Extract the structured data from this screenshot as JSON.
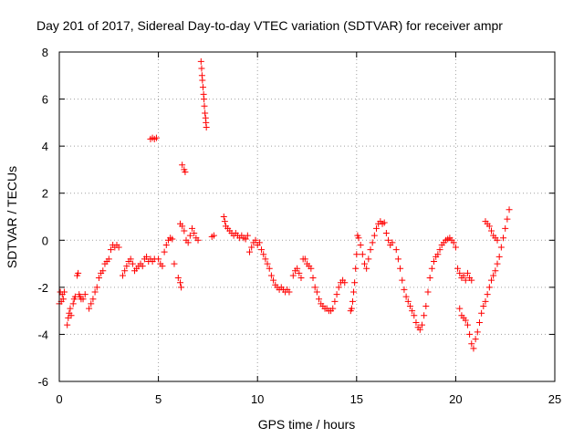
{
  "chart_data": {
    "type": "scatter",
    "title": "Day 201 of 2017, Sidereal Day-to-day VTEC variation (SDTVAR) for receiver ampr",
    "xlabel": "GPS time / hours",
    "ylabel": "SDTVAR / TECUs",
    "xlim": [
      0,
      25
    ],
    "ylim": [
      -6,
      8
    ],
    "xticks": [
      "0",
      "5",
      "10",
      "15",
      "20",
      "25"
    ],
    "yticks": [
      "-6",
      "-4",
      "-2",
      "0",
      "2",
      "4",
      "6",
      "8"
    ],
    "grid": true,
    "marker": "plus",
    "color": "#ff0000",
    "series": [
      {
        "name": "SDTVAR",
        "points": [
          [
            0.0,
            -2.7
          ],
          [
            0.05,
            -2.2
          ],
          [
            0.1,
            -2.6
          ],
          [
            0.15,
            -2.3
          ],
          [
            0.2,
            -2.5
          ],
          [
            0.25,
            -2.2
          ],
          [
            0.4,
            -3.6
          ],
          [
            0.45,
            -3.3
          ],
          [
            0.5,
            -3.1
          ],
          [
            0.55,
            -2.9
          ],
          [
            0.6,
            -3.2
          ],
          [
            0.7,
            -2.7
          ],
          [
            0.75,
            -2.5
          ],
          [
            0.8,
            -2.4
          ],
          [
            0.9,
            -1.5
          ],
          [
            0.95,
            -1.4
          ],
          [
            1.0,
            -2.3
          ],
          [
            1.05,
            -2.4
          ],
          [
            1.1,
            -2.5
          ],
          [
            1.2,
            -2.5
          ],
          [
            1.3,
            -2.3
          ],
          [
            1.5,
            -2.9
          ],
          [
            1.6,
            -2.7
          ],
          [
            1.7,
            -2.5
          ],
          [
            1.8,
            -2.2
          ],
          [
            1.9,
            -2.0
          ],
          [
            2.0,
            -1.6
          ],
          [
            2.1,
            -1.4
          ],
          [
            2.2,
            -1.3
          ],
          [
            2.3,
            -1.0
          ],
          [
            2.4,
            -0.9
          ],
          [
            2.5,
            -0.8
          ],
          [
            2.6,
            -0.4
          ],
          [
            2.7,
            -0.2
          ],
          [
            2.8,
            -0.3
          ],
          [
            2.9,
            -0.2
          ],
          [
            3.0,
            -0.3
          ],
          [
            3.2,
            -1.5
          ],
          [
            3.3,
            -1.3
          ],
          [
            3.4,
            -1.1
          ],
          [
            3.5,
            -0.9
          ],
          [
            3.6,
            -0.8
          ],
          [
            3.7,
            -1.0
          ],
          [
            3.8,
            -1.3
          ],
          [
            3.9,
            -1.2
          ],
          [
            4.0,
            -1.1
          ],
          [
            4.1,
            -1.0
          ],
          [
            4.2,
            -1.1
          ],
          [
            4.3,
            -0.8
          ],
          [
            4.4,
            -0.7
          ],
          [
            4.5,
            -0.9
          ],
          [
            4.6,
            -0.8
          ],
          [
            4.7,
            -0.9
          ],
          [
            4.8,
            -0.8
          ],
          [
            4.6,
            4.3
          ],
          [
            4.7,
            4.35
          ],
          [
            4.8,
            4.3
          ],
          [
            4.9,
            4.35
          ],
          [
            5.0,
            -0.8
          ],
          [
            5.1,
            -1.0
          ],
          [
            5.2,
            -1.1
          ],
          [
            5.3,
            -0.5
          ],
          [
            5.4,
            -0.2
          ],
          [
            5.5,
            0.0
          ],
          [
            5.6,
            0.1
          ],
          [
            5.7,
            0.05
          ],
          [
            5.8,
            -1.0
          ],
          [
            6.0,
            -1.6
          ],
          [
            6.1,
            -1.8
          ],
          [
            6.15,
            -2.0
          ],
          [
            6.2,
            3.2
          ],
          [
            6.3,
            3.0
          ],
          [
            6.35,
            2.9
          ],
          [
            6.1,
            0.7
          ],
          [
            6.2,
            0.6
          ],
          [
            6.3,
            0.4
          ],
          [
            6.4,
            0.0
          ],
          [
            6.5,
            -0.1
          ],
          [
            6.6,
            0.2
          ],
          [
            6.7,
            0.5
          ],
          [
            6.8,
            0.3
          ],
          [
            6.9,
            0.1
          ],
          [
            7.0,
            0.0
          ],
          [
            7.15,
            7.6
          ],
          [
            7.18,
            7.3
          ],
          [
            7.2,
            7.0
          ],
          [
            7.22,
            6.8
          ],
          [
            7.25,
            6.5
          ],
          [
            7.28,
            6.2
          ],
          [
            7.3,
            6.0
          ],
          [
            7.32,
            5.7
          ],
          [
            7.35,
            5.4
          ],
          [
            7.38,
            5.2
          ],
          [
            7.4,
            5.0
          ],
          [
            7.42,
            4.8
          ],
          [
            7.7,
            0.15
          ],
          [
            7.8,
            0.2
          ],
          [
            8.3,
            1.0
          ],
          [
            8.35,
            0.8
          ],
          [
            8.4,
            0.6
          ],
          [
            8.5,
            0.5
          ],
          [
            8.6,
            0.4
          ],
          [
            8.7,
            0.3
          ],
          [
            8.8,
            0.2
          ],
          [
            8.9,
            0.3
          ],
          [
            9.0,
            0.2
          ],
          [
            9.1,
            0.1
          ],
          [
            9.2,
            0.2
          ],
          [
            9.3,
            0.1
          ],
          [
            9.4,
            0.05
          ],
          [
            9.5,
            0.2
          ],
          [
            9.6,
            -0.5
          ],
          [
            9.7,
            -0.3
          ],
          [
            9.8,
            -0.1
          ],
          [
            9.9,
            0.0
          ],
          [
            10.0,
            -0.2
          ],
          [
            10.1,
            -0.1
          ],
          [
            10.2,
            -0.4
          ],
          [
            10.3,
            -0.6
          ],
          [
            10.4,
            -0.8
          ],
          [
            10.5,
            -1.0
          ],
          [
            10.6,
            -1.2
          ],
          [
            10.7,
            -1.5
          ],
          [
            10.8,
            -1.7
          ],
          [
            10.9,
            -1.9
          ],
          [
            11.0,
            -2.0
          ],
          [
            11.1,
            -2.1
          ],
          [
            11.2,
            -2.0
          ],
          [
            11.3,
            -2.1
          ],
          [
            11.4,
            -2.2
          ],
          [
            11.5,
            -2.1
          ],
          [
            11.6,
            -2.2
          ],
          [
            11.8,
            -1.5
          ],
          [
            11.9,
            -1.3
          ],
          [
            12.0,
            -1.2
          ],
          [
            12.1,
            -1.4
          ],
          [
            12.2,
            -1.6
          ],
          [
            12.3,
            -0.8
          ],
          [
            12.4,
            -0.8
          ],
          [
            12.5,
            -1.0
          ],
          [
            12.6,
            -1.1
          ],
          [
            12.7,
            -1.2
          ],
          [
            12.8,
            -1.6
          ],
          [
            12.9,
            -2.0
          ],
          [
            13.0,
            -2.2
          ],
          [
            13.1,
            -2.5
          ],
          [
            13.2,
            -2.7
          ],
          [
            13.3,
            -2.8
          ],
          [
            13.4,
            -2.9
          ],
          [
            13.5,
            -2.9
          ],
          [
            13.6,
            -3.0
          ],
          [
            13.7,
            -3.0
          ],
          [
            13.8,
            -2.9
          ],
          [
            13.9,
            -2.6
          ],
          [
            14.0,
            -2.3
          ],
          [
            14.1,
            -2.0
          ],
          [
            14.2,
            -1.8
          ],
          [
            14.3,
            -1.7
          ],
          [
            14.4,
            -1.8
          ],
          [
            14.7,
            -3.0
          ],
          [
            14.75,
            -2.9
          ],
          [
            14.8,
            -2.6
          ],
          [
            14.85,
            -2.2
          ],
          [
            14.9,
            -1.8
          ],
          [
            14.95,
            -1.2
          ],
          [
            15.0,
            -0.6
          ],
          [
            15.05,
            0.2
          ],
          [
            15.1,
            0.1
          ],
          [
            15.2,
            -0.2
          ],
          [
            15.3,
            -0.6
          ],
          [
            15.4,
            -1.0
          ],
          [
            15.5,
            -1.2
          ],
          [
            15.6,
            -0.8
          ],
          [
            15.7,
            -0.4
          ],
          [
            15.8,
            -0.1
          ],
          [
            15.9,
            0.2
          ],
          [
            16.0,
            0.5
          ],
          [
            16.1,
            0.7
          ],
          [
            16.2,
            0.8
          ],
          [
            16.3,
            0.7
          ],
          [
            16.4,
            0.75
          ],
          [
            16.5,
            0.3
          ],
          [
            16.6,
            0.0
          ],
          [
            16.7,
            -0.2
          ],
          [
            16.8,
            -0.1
          ],
          [
            17.0,
            -0.4
          ],
          [
            17.1,
            -0.8
          ],
          [
            17.2,
            -1.2
          ],
          [
            17.3,
            -1.7
          ],
          [
            17.4,
            -2.1
          ],
          [
            17.5,
            -2.4
          ],
          [
            17.6,
            -2.6
          ],
          [
            17.7,
            -2.8
          ],
          [
            17.8,
            -3.0
          ],
          [
            17.9,
            -3.2
          ],
          [
            18.0,
            -3.5
          ],
          [
            18.1,
            -3.7
          ],
          [
            18.2,
            -3.8
          ],
          [
            18.3,
            -3.6
          ],
          [
            18.4,
            -3.2
          ],
          [
            18.5,
            -2.8
          ],
          [
            18.6,
            -2.2
          ],
          [
            18.7,
            -1.6
          ],
          [
            18.8,
            -1.2
          ],
          [
            18.9,
            -0.9
          ],
          [
            19.0,
            -0.7
          ],
          [
            19.1,
            -0.6
          ],
          [
            19.2,
            -0.4
          ],
          [
            19.3,
            -0.2
          ],
          [
            19.4,
            -0.1
          ],
          [
            19.5,
            0.0
          ],
          [
            19.6,
            0.05
          ],
          [
            19.7,
            0.1
          ],
          [
            19.8,
            0.0
          ],
          [
            19.9,
            -0.1
          ],
          [
            20.0,
            -0.3
          ],
          [
            20.1,
            -1.2
          ],
          [
            20.2,
            -1.4
          ],
          [
            20.3,
            -1.6
          ],
          [
            20.4,
            -1.5
          ],
          [
            20.5,
            -1.7
          ],
          [
            20.6,
            -1.4
          ],
          [
            20.7,
            -1.6
          ],
          [
            20.8,
            -1.7
          ],
          [
            20.2,
            -2.9
          ],
          [
            20.3,
            -3.2
          ],
          [
            20.4,
            -3.3
          ],
          [
            20.5,
            -3.4
          ],
          [
            20.6,
            -3.6
          ],
          [
            20.7,
            -4.0
          ],
          [
            20.8,
            -4.4
          ],
          [
            20.9,
            -4.6
          ],
          [
            21.0,
            -4.2
          ],
          [
            21.1,
            -3.9
          ],
          [
            21.2,
            -3.5
          ],
          [
            21.3,
            -3.1
          ],
          [
            21.4,
            -2.8
          ],
          [
            21.5,
            -2.6
          ],
          [
            21.6,
            -2.3
          ],
          [
            21.7,
            -2.0
          ],
          [
            21.8,
            -1.7
          ],
          [
            21.9,
            -1.5
          ],
          [
            22.0,
            -1.3
          ],
          [
            22.1,
            -1.0
          ],
          [
            22.2,
            -0.7
          ],
          [
            22.3,
            -0.3
          ],
          [
            22.4,
            0.1
          ],
          [
            22.5,
            0.5
          ],
          [
            22.6,
            0.9
          ],
          [
            22.7,
            1.3
          ],
          [
            21.5,
            0.8
          ],
          [
            21.6,
            0.7
          ],
          [
            21.7,
            0.6
          ],
          [
            21.8,
            0.4
          ],
          [
            21.9,
            0.2
          ],
          [
            22.0,
            0.1
          ],
          [
            22.1,
            0.0
          ]
        ]
      }
    ]
  }
}
